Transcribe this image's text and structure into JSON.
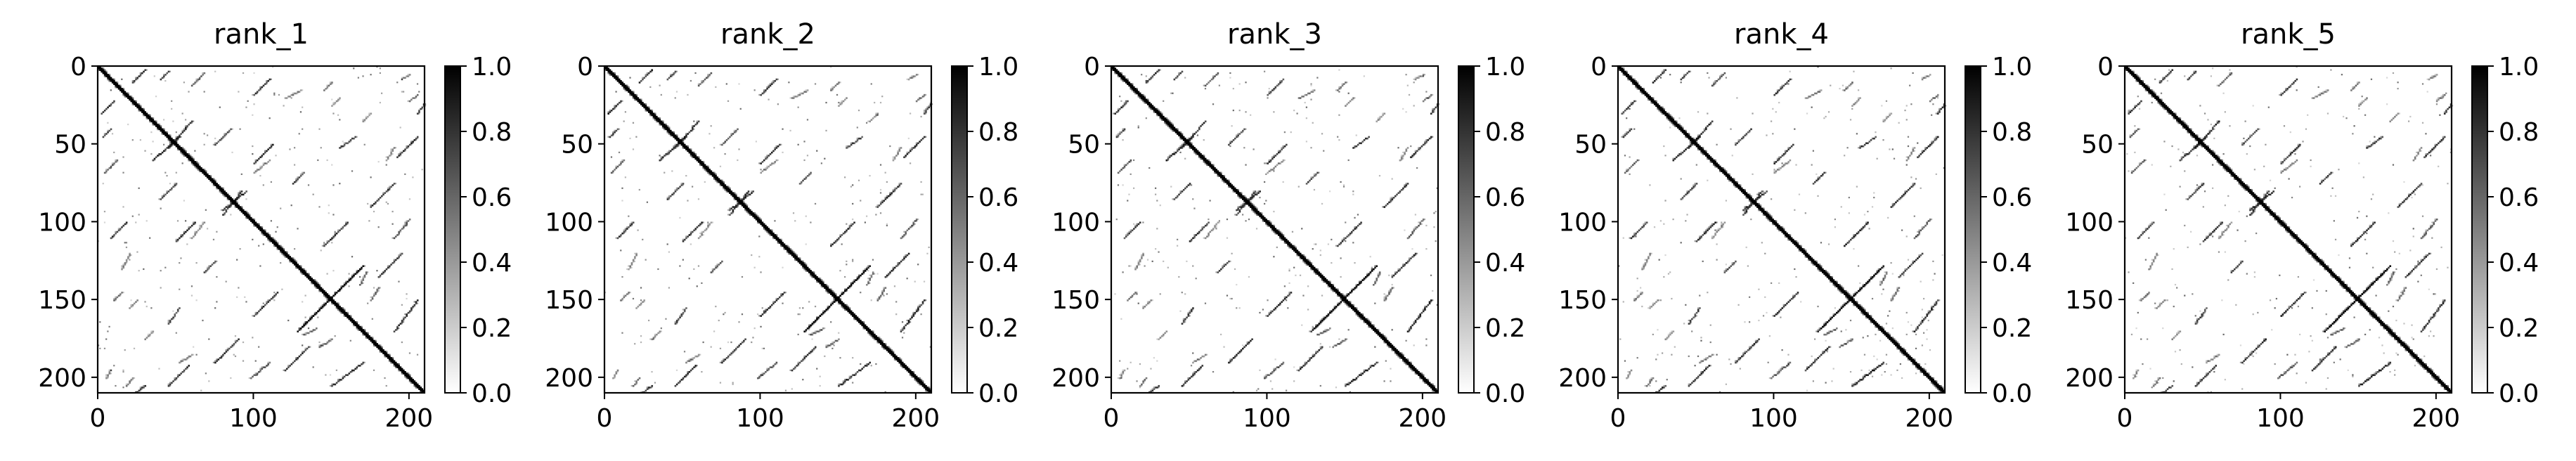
{
  "chart_data": [
    {
      "type": "heatmap",
      "title": "rank_1",
      "colormap": "gray_r",
      "n": 210,
      "xlim": [
        0,
        210
      ],
      "ylim": [
        210,
        0
      ],
      "xticks": [
        0,
        100,
        200
      ],
      "yticks": [
        0,
        50,
        100,
        150,
        200
      ],
      "colorbar": {
        "range": [
          0.0,
          1.0
        ],
        "ticks": [
          "0.0",
          "0.2",
          "0.4",
          "0.6",
          "0.8",
          "1.0"
        ]
      },
      "diagonal_band": {
        "from": 0,
        "to": 210,
        "value": 1.0
      },
      "contacts": [
        {
          "from": [
            10,
            22
          ],
          "to": [
            2,
            30
          ],
          "value": 0.9
        },
        {
          "from": [
            8,
            40
          ],
          "to": [
            3,
            45
          ],
          "value": 0.8
        },
        {
          "from": [
            12,
            60
          ],
          "to": [
            4,
            68
          ],
          "value": 0.7
        },
        {
          "from": [
            18,
            100
          ],
          "to": [
            8,
            110
          ],
          "value": 0.85
        },
        {
          "from": [
            15,
            145
          ],
          "to": [
            10,
            150
          ],
          "value": 0.6
        },
        {
          "from": [
            30,
            205
          ],
          "to": [
            20,
            212
          ],
          "value": 0.85
        },
        {
          "from": [
            60,
            35
          ],
          "to": [
            45,
            52
          ],
          "value": 0.9
        },
        {
          "from": [
            62,
            100
          ],
          "to": [
            50,
            112
          ],
          "value": 0.9
        },
        {
          "from": [
            52,
            155
          ],
          "to": [
            45,
            165
          ],
          "value": 0.8
        },
        {
          "from": [
            85,
            40
          ],
          "to": [
            75,
            50
          ],
          "value": 0.8
        },
        {
          "from": [
            95,
            80
          ],
          "to": [
            80,
            92
          ],
          "value": 0.85
        },
        {
          "from": [
            75,
            125
          ],
          "to": [
            68,
            132
          ],
          "value": 0.8
        },
        {
          "from": [
            115,
            145
          ],
          "to": [
            100,
            160
          ],
          "value": 0.9
        },
        {
          "from": [
            110,
            190
          ],
          "to": [
            98,
            200
          ],
          "value": 0.7
        },
        {
          "from": [
            168,
            130
          ],
          "to": [
            128,
            170
          ],
          "value": 1.0
        },
        {
          "from": [
            170,
            190
          ],
          "to": [
            150,
            205
          ],
          "value": 0.9
        },
        {
          "from": [
            190,
            75
          ],
          "to": [
            175,
            90
          ],
          "value": 0.9
        },
        {
          "from": [
            195,
            120
          ],
          "to": [
            180,
            135
          ],
          "value": 0.9
        },
        {
          "from": [
            205,
            45
          ],
          "to": [
            192,
            58
          ],
          "value": 0.9
        },
        {
          "from": [
            205,
            18
          ],
          "to": [
            200,
            22
          ],
          "value": 0.6
        },
        {
          "from": [
            200,
            5
          ],
          "to": [
            195,
            8
          ],
          "value": 0.5
        },
        {
          "from": [
            140,
            168
          ],
          "to": [
            132,
            172
          ],
          "value": 0.6
        },
        {
          "from": [
            150,
            175
          ],
          "to": [
            142,
            180
          ],
          "value": 0.6
        },
        {
          "from": [
            155,
            20
          ],
          "to": [
            150,
            25
          ],
          "value": 0.5
        },
        {
          "from": [
            130,
            15
          ],
          "to": [
            120,
            20
          ],
          "value": 0.5
        },
        {
          "from": [
            110,
            60
          ],
          "to": [
            100,
            68
          ],
          "value": 0.5
        },
        {
          "from": [
            35,
            170
          ],
          "to": [
            30,
            175
          ],
          "value": 0.5
        },
        {
          "from": [
            60,
            185
          ],
          "to": [
            52,
            190
          ],
          "value": 0.5
        }
      ]
    },
    {
      "type": "heatmap",
      "title": "rank_2",
      "colormap": "gray_r",
      "same_contacts_as": "rank_1",
      "xticks": [
        0,
        100,
        200
      ],
      "yticks": [
        0,
        50,
        100,
        150,
        200
      ],
      "colorbar": {
        "range": [
          0.0,
          1.0
        ],
        "ticks": [
          "0.0",
          "0.2",
          "0.4",
          "0.6",
          "0.8",
          "1.0"
        ]
      }
    },
    {
      "type": "heatmap",
      "title": "rank_3",
      "colormap": "gray_r",
      "same_contacts_as": "rank_1",
      "xticks": [
        0,
        100,
        200
      ],
      "yticks": [
        0,
        50,
        100,
        150,
        200
      ],
      "colorbar": {
        "range": [
          0.0,
          1.0
        ],
        "ticks": [
          "0.0",
          "0.2",
          "0.4",
          "0.6",
          "0.8",
          "1.0"
        ]
      }
    },
    {
      "type": "heatmap",
      "title": "rank_4",
      "colormap": "gray_r",
      "same_contacts_as": "rank_1",
      "xticks": [
        0,
        100,
        200
      ],
      "yticks": [
        0,
        50,
        100,
        150,
        200
      ],
      "colorbar": {
        "range": [
          0.0,
          1.0
        ],
        "ticks": [
          "0.0",
          "0.2",
          "0.4",
          "0.6",
          "0.8",
          "1.0"
        ]
      }
    },
    {
      "type": "heatmap",
      "title": "rank_5",
      "colormap": "gray_r",
      "same_contacts_as": "rank_1",
      "xticks": [
        0,
        100,
        200
      ],
      "yticks": [
        0,
        50,
        100,
        150,
        200
      ],
      "colorbar": {
        "range": [
          0.0,
          1.0
        ],
        "ticks": [
          "0.0",
          "0.2",
          "0.4",
          "0.6",
          "0.8",
          "1.0"
        ]
      }
    }
  ]
}
